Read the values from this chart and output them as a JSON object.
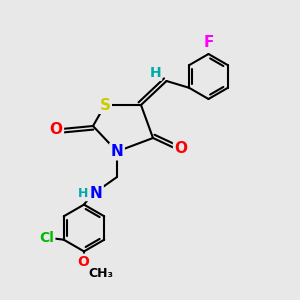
{
  "background_color": "#e8e8e8",
  "atom_colors": {
    "F": "#ff00ff",
    "S": "#cccc00",
    "N": "#0000ff",
    "O": "#ff0000",
    "Cl": "#00bb00",
    "H": "#00aaaa",
    "C": "#000000"
  },
  "bond_color": "#000000",
  "bond_width": 1.5,
  "font_size": 10
}
